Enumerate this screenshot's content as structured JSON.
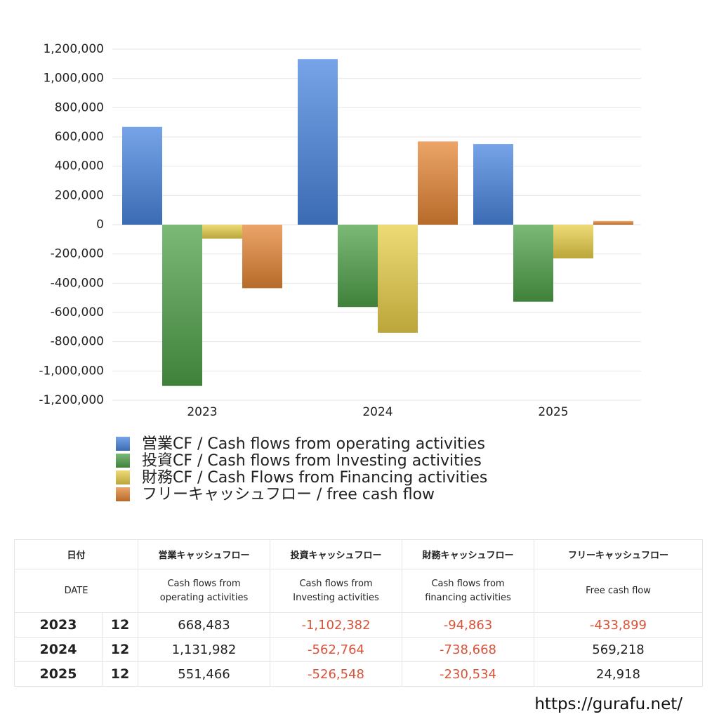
{
  "chart_data": {
    "type": "bar",
    "categories": [
      "2023",
      "2024",
      "2025"
    ],
    "series": [
      {
        "name": "営業CF / Cash flows from operating activities",
        "color": "#4a86e0",
        "values": [
          668483,
          1131982,
          551466
        ]
      },
      {
        "name": "投資CF / Cash flows from Investing activities",
        "color": "#4fa14a",
        "values": [
          -1102382,
          -562764,
          -526548
        ]
      },
      {
        "name": "財務CF / Cash Flows from Financing activities",
        "color": "#e8cf48",
        "values": [
          -94863,
          -738668,
          -230534
        ]
      },
      {
        "name": "フリーキャッシュフロー / free cash flow",
        "color": "#e58635",
        "values": [
          -433899,
          569218,
          24918
        ]
      }
    ],
    "ylim": [
      -1200000,
      1200000
    ],
    "yticks": [
      {
        "value": -1200000,
        "label": "-1,200,000"
      },
      {
        "value": -1000000,
        "label": "-1,000,000"
      },
      {
        "value": -800000,
        "label": "-800,000"
      },
      {
        "value": -600000,
        "label": "-600,000"
      },
      {
        "value": -400000,
        "label": "-400,000"
      },
      {
        "value": -200000,
        "label": "-200,000"
      },
      0,
      {
        "value": 200000,
        "label": "200,000"
      },
      {
        "value": 400000,
        "label": "400,000"
      },
      {
        "value": 600000,
        "label": "600,000"
      },
      {
        "value": 800000,
        "label": "800,000"
      },
      {
        "value": 1000000,
        "label": "1,000,000"
      },
      {
        "value": 1200000,
        "label": "1,200,000"
      }
    ],
    "grid": true
  },
  "table": {
    "header_jp": [
      "日付",
      "営業キャッシュフロー",
      "投資キャッシュフロー",
      "財務キャッシュフロー",
      "フリーキャッシュフロー"
    ],
    "header_en": [
      "DATE",
      "Cash flows from\noperating activities",
      "Cash flows from\nInvesting activities",
      "Cash flows from\nfinancing activities",
      "Free cash flow"
    ],
    "rows": [
      [
        "2023",
        "12",
        "668,483",
        "-1,102,382",
        "-94,863",
        "-433,899"
      ],
      [
        "2024",
        "12",
        "1,131,982",
        "-562,764",
        "-738,668",
        "569,218"
      ],
      [
        "2025",
        "12",
        "551,466",
        "-526,548",
        "-230,534",
        "24,918"
      ]
    ]
  },
  "footer": "https://gurafu.net/"
}
